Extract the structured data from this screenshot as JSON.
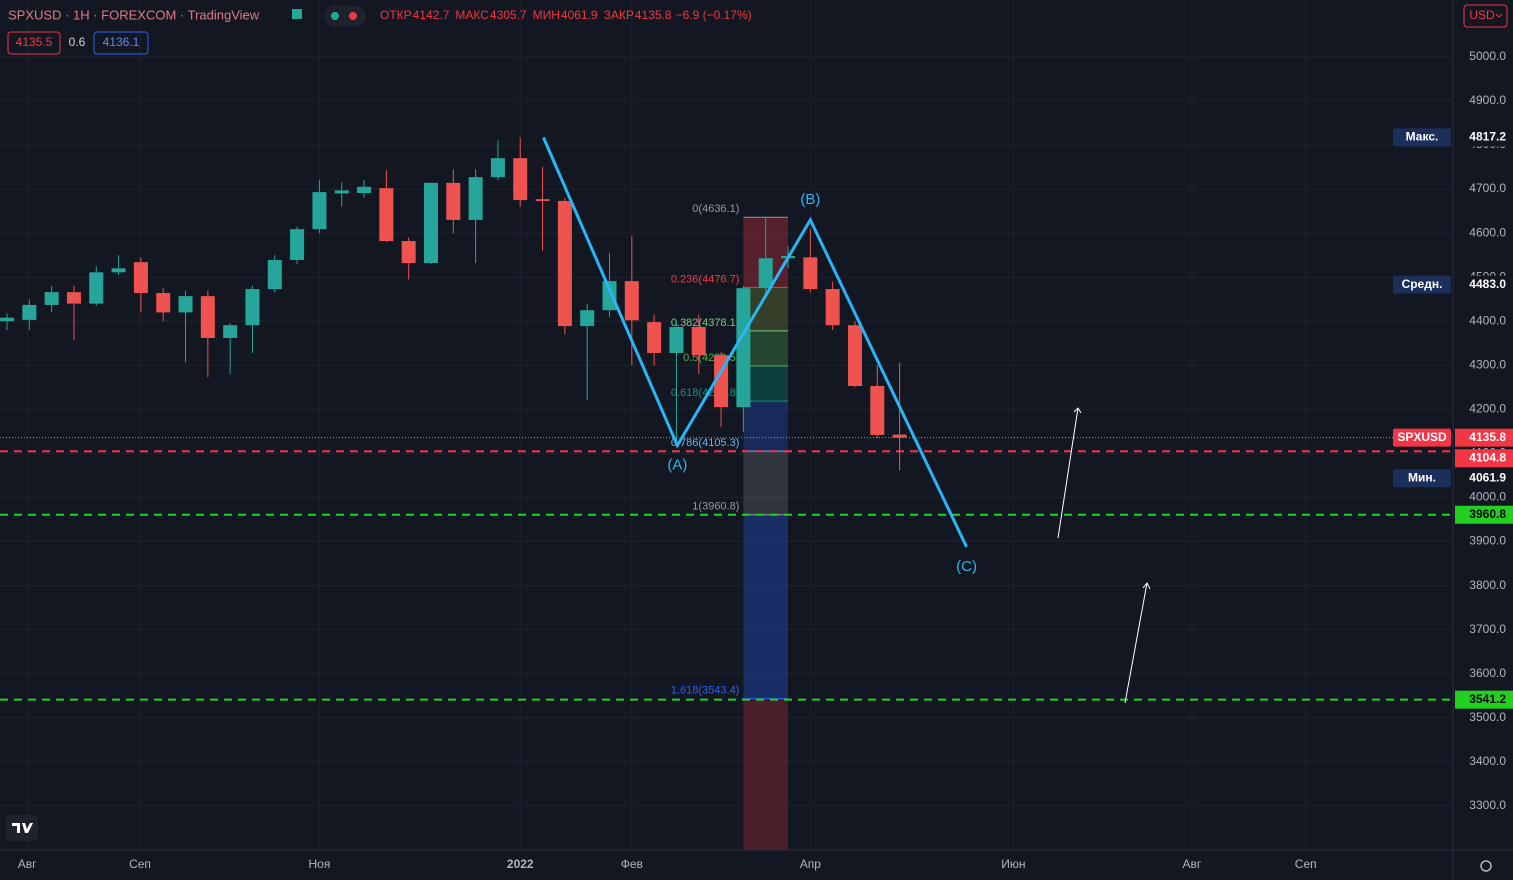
{
  "chart_data": {
    "type": "candlestick",
    "title": "SPXUSD · 1H · FOREXCOM · TradingView",
    "ohlc_legend": [
      {
        "label": "ОТКР",
        "value": "4142.7"
      },
      {
        "label": "МАКС",
        "value": "4305.7"
      },
      {
        "label": "МИН",
        "value": "4061.9"
      },
      {
        "label": "ЗАКР",
        "value": "4135.8"
      }
    ],
    "change": "−6.9 (−0.17%)",
    "bid": "4135.5",
    "spread": "0.6",
    "ask": "4136.1",
    "currency": "USD",
    "up_color": "#26a69a",
    "down_color": "#ef5350",
    "series": [
      {
        "name": "SPXUSD",
        "open": [
          4400,
          4403,
          4437,
          4466,
          4440,
          4511,
          4534,
          4464,
          4420,
          4457,
          4362,
          4391,
          4473,
          4539,
          4609,
          4690,
          4691,
          4702,
          4582,
          4532,
          4714,
          4630,
          4727,
          4770,
          4677,
          4673,
          4389,
          4425,
          4491,
          4398,
          4328,
          4387,
          4323,
          4205,
          4475,
          4543,
          4545,
          4473,
          4391,
          4253,
          4142.7
        ],
        "high": [
          4418,
          4450,
          4480,
          4480,
          4525,
          4550,
          4545,
          4475,
          4470,
          4470,
          4395,
          4480,
          4550,
          4615,
          4720,
          4715,
          4720,
          4743,
          4590,
          4715,
          4745,
          4745,
          4810,
          4817,
          4750,
          4680,
          4440,
          4555,
          4593,
          4415,
          4400,
          4415,
          4330,
          4480,
          4637,
          4570,
          4610,
          4490,
          4400,
          4300,
          4305.7
        ],
        "low": [
          4380,
          4380,
          4420,
          4357,
          4435,
          4505,
          4420,
          4400,
          4307,
          4273,
          4280,
          4328,
          4465,
          4530,
          4600,
          4660,
          4680,
          4580,
          4495,
          4530,
          4600,
          4532,
          4720,
          4660,
          4560,
          4370,
          4221,
          4410,
          4300,
          4300,
          4118,
          4280,
          4160,
          4149,
          4460,
          4520,
          4465,
          4380,
          4250,
          4135,
          4061.9
        ],
        "close": [
          4408,
          4437,
          4466,
          4440,
          4511,
          4520,
          4464,
          4420,
          4457,
          4362,
          4391,
          4473,
          4539,
          4609,
          4693,
          4697,
          4705,
          4582,
          4532,
          4714,
          4630,
          4727,
          4770,
          4675,
          4673,
          4389,
          4425,
          4491,
          4402,
          4328,
          4387,
          4323,
          4205,
          4475,
          4543,
          4548,
          4473,
          4391,
          4253,
          4142,
          4135.8
        ]
      }
    ],
    "xlim": [
      -0.314,
      64.8
    ],
    "xticks": [
      {
        "value": 0.9,
        "label": "Авг"
      },
      {
        "value": 5.96,
        "label": "Сеп"
      },
      {
        "value": 14,
        "label": "Ноя"
      },
      {
        "value": 23,
        "label": "2022"
      },
      {
        "value": 28,
        "label": "Фев"
      },
      {
        "value": 36,
        "label": "Апр"
      },
      {
        "value": 45.1,
        "label": "Июн"
      },
      {
        "value": 53.1,
        "label": "Авг"
      },
      {
        "value": 58.2,
        "label": "Сеп"
      }
    ],
    "ylim": [
      3200,
      5129
    ],
    "yticks": [
      {
        "value": 3300,
        "label": "3300.0"
      },
      {
        "value": 3400,
        "label": "3400.0"
      },
      {
        "value": 3500,
        "label": "3500.0"
      },
      {
        "value": 3600,
        "label": "3600.0"
      },
      {
        "value": 3700,
        "label": "3700.0"
      },
      {
        "value": 3800,
        "label": "3800.0"
      },
      {
        "value": 3900,
        "label": "3900.0"
      },
      {
        "value": 4000,
        "label": "4000.0"
      },
      {
        "value": 4100,
        "label": "4100.0"
      },
      {
        "value": 4200,
        "label": "4200.0"
      },
      {
        "value": 4300,
        "label": "4300.0"
      },
      {
        "value": 4400,
        "label": "4400.0"
      },
      {
        "value": 4500,
        "label": "4500.0"
      },
      {
        "value": 4600,
        "label": "4600.0"
      },
      {
        "value": 4700,
        "label": "4700.0"
      },
      {
        "value": 4800,
        "label": "4800.0"
      },
      {
        "value": 4900,
        "label": "4900.0"
      },
      {
        "value": 5000,
        "label": "5000.0"
      }
    ],
    "grid": true,
    "price_labels": [
      {
        "label": "Макс.",
        "value": 4817.2,
        "color": "#1c2e5a"
      },
      {
        "label": "Средн.",
        "value": 4483,
        "value_label": "4483.0",
        "color": "#1c2e5a"
      },
      {
        "value": 4104.8,
        "color": "#f23645",
        "line": true
      },
      {
        "label": "Мин.",
        "value": 4061.9,
        "color": "#1c2e5a"
      },
      {
        "value": 3960.8,
        "color": "#22d11f",
        "line": true
      },
      {
        "value": 3541.2,
        "color": "#22d11f",
        "line": true
      }
    ],
    "fib": {
      "x_start": 33,
      "x_end": 35,
      "levels": [
        {
          "price": 4636.1,
          "label": "0(4636.1)",
          "color": "#9598a1",
          "band": "rgba(242,54,69,0.30)"
        },
        {
          "price": 4476.7,
          "label": "0.236(4476.7)",
          "color": "#f23645",
          "band": "rgba(129,153,57,0.30)"
        },
        {
          "price": 4378.1,
          "label": "0.382(4378.1)",
          "color": "#81c784",
          "band": "rgba(76,175,80,0.30)"
        },
        {
          "price": 4298.5,
          "label": "0.5(4298.5)",
          "color": "#4caf50",
          "band": "rgba(8,153,129,0.30)"
        },
        {
          "price": 4218.8,
          "label": "0.618(4218.8)",
          "color": "#089981",
          "band": "rgba(41,98,255,0.25)"
        },
        {
          "price": 4105.3,
          "label": "0.786(4105.3)",
          "color": "#64b5f6",
          "band": "rgba(120,123,134,0.30)"
        },
        {
          "price": 3960.8,
          "label": "1(3960.8)",
          "color": "#9598a1",
          "band": "rgba(41,98,255,0.30)"
        },
        {
          "price": 3543.4,
          "label": "1.618(3543.4)",
          "color": "#2962ff",
          "band": "rgba(242,54,69,0.25)"
        }
      ]
    },
    "waves": {
      "color": "#29b6f6",
      "points": [
        {
          "x": 24.04,
          "price": 4817
        },
        {
          "x": 30.04,
          "price": 4118,
          "label": "(A)"
        },
        {
          "x": 36,
          "price": 4630,
          "label": "(B)"
        },
        {
          "x": 43,
          "price": 3888,
          "label": "(C)"
        }
      ]
    }
  }
}
